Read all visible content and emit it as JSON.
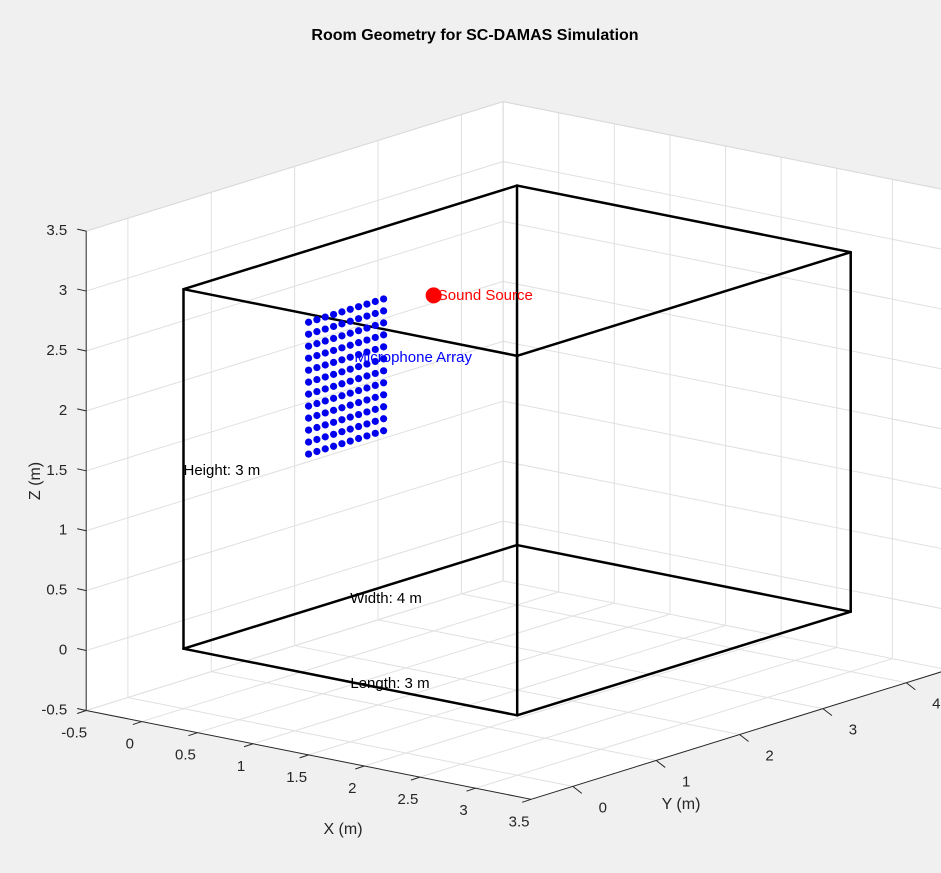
{
  "chart_data": {
    "type": "scatter3d",
    "title": "Room Geometry for SC-DAMAS Simulation",
    "xlabel": "X (m)",
    "ylabel": "Y (m)",
    "zlabel": "Z (m)",
    "xlim": [
      -0.5,
      3.5
    ],
    "ylim": [
      -0.5,
      4.5
    ],
    "zlim": [
      -0.5,
      3.5
    ],
    "x_ticks": [
      "-0.5",
      "0",
      "0.5",
      "1",
      "1.5",
      "2",
      "2.5",
      "3",
      "3.5"
    ],
    "x_tick_values": [
      -0.5,
      0,
      0.5,
      1,
      1.5,
      2,
      2.5,
      3,
      3.5
    ],
    "y_ticks": [
      "0",
      "1",
      "2",
      "3",
      "4"
    ],
    "y_tick_values": [
      0,
      1,
      2,
      3,
      4
    ],
    "z_ticks": [
      "-0.5",
      "0",
      "0.5",
      "1",
      "1.5",
      "2",
      "2.5",
      "3",
      "3.5"
    ],
    "z_tick_values": [
      -0.5,
      0,
      0.5,
      1,
      1.5,
      2,
      2.5,
      3,
      3.5
    ],
    "grid": true,
    "room": {
      "length": 3,
      "width": 4,
      "height": 3,
      "edge_color": "#000000"
    },
    "microphone_array": {
      "plane_x": 0,
      "y_values": [
        1.5,
        1.6,
        1.7,
        1.8,
        1.9,
        2.0,
        2.1,
        2.2,
        2.3,
        2.4
      ],
      "z_values": [
        1.3,
        1.4,
        1.5,
        1.6,
        1.7,
        1.8,
        1.9,
        2.0,
        2.1,
        2.2,
        2.3,
        2.4
      ],
      "color": "#0000ee"
    },
    "sound_source": {
      "x": 0,
      "y": 3,
      "z": 2.3,
      "color": "#ff0000"
    },
    "annotations": [
      {
        "text": "Sound Source",
        "x": 0,
        "y": 3.05,
        "z": 2.3,
        "color": "#ff0000"
      },
      {
        "text": "Microphone Array",
        "x": 0,
        "y": 2.05,
        "z": 2.0,
        "color": "#0000ff"
      },
      {
        "text": "Length: 3 m",
        "x": 1.5,
        "y": 0,
        "z": 0,
        "color": "#000000"
      },
      {
        "text": "Width: 4 m",
        "x": 0,
        "y": 2,
        "z": 0,
        "color": "#000000"
      },
      {
        "text": "Height: 3 m",
        "x": 0,
        "y": 0,
        "z": 1.5,
        "color": "#000000"
      }
    ]
  }
}
